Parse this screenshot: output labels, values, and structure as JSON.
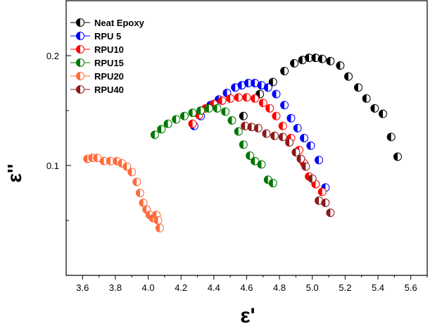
{
  "chart_data": {
    "type": "scatter",
    "xlabel": "ε'",
    "ylabel": "ε''",
    "xlim": [
      3.5,
      5.7
    ],
    "ylim": [
      0.0,
      0.25
    ],
    "x_ticks": [
      3.6,
      3.8,
      4.0,
      4.2,
      4.4,
      4.6,
      4.8,
      5.0,
      5.2,
      5.4,
      5.6
    ],
    "x_tick_labels": [
      "3.6",
      "3.8",
      "4.0",
      "4.2",
      "4.4",
      "4.6",
      "4.8",
      "5.0",
      "5.2",
      "5.4",
      "5.6"
    ],
    "y_ticks": [
      0.1,
      0.2
    ],
    "y_tick_labels": [
      "0.1",
      "0.2"
    ],
    "y_minor_ticks": [
      0.05,
      0.15
    ],
    "grid": false,
    "legend_position": "top-left",
    "series": [
      {
        "name": "Neat Epoxy",
        "color": "#000000",
        "x": [
          4.58,
          4.68,
          4.76,
          4.83,
          4.89,
          4.94,
          4.98,
          5.02,
          5.06,
          5.11,
          5.17,
          5.22,
          5.28,
          5.33,
          5.38,
          5.43,
          5.48,
          5.52
        ],
        "y": [
          0.145,
          0.165,
          0.176,
          0.186,
          0.193,
          0.196,
          0.198,
          0.198,
          0.197,
          0.195,
          0.191,
          0.181,
          0.171,
          0.161,
          0.152,
          0.147,
          0.126,
          0.108
        ]
      },
      {
        "name": "RPU 5",
        "color": "#0000ff",
        "x": [
          4.28,
          4.32,
          4.38,
          4.43,
          4.48,
          4.53,
          4.57,
          4.61,
          4.65,
          4.69,
          4.73,
          4.78,
          4.83,
          4.87,
          4.91,
          4.95,
          4.99,
          5.04,
          5.08
        ],
        "y": [
          0.136,
          0.145,
          0.155,
          0.16,
          0.166,
          0.171,
          0.173,
          0.175,
          0.175,
          0.173,
          0.171,
          0.165,
          0.155,
          0.143,
          0.134,
          0.125,
          0.118,
          0.105,
          0.08
        ]
      },
      {
        "name": "RPU10",
        "color": "#ff0000",
        "x": [
          4.27,
          4.31,
          4.35,
          4.4,
          4.45,
          4.5,
          4.55,
          4.6,
          4.65,
          4.7,
          4.74,
          4.78,
          4.82,
          4.87,
          4.92,
          4.95,
          4.98,
          5.02,
          5.06
        ],
        "y": [
          0.138,
          0.146,
          0.152,
          0.156,
          0.159,
          0.161,
          0.162,
          0.162,
          0.161,
          0.157,
          0.152,
          0.145,
          0.136,
          0.125,
          0.114,
          0.102,
          0.09,
          0.083,
          0.076
        ]
      },
      {
        "name": "RPU15",
        "color": "#007700",
        "x": [
          4.04,
          4.08,
          4.12,
          4.17,
          4.22,
          4.27,
          4.32,
          4.37,
          4.42,
          4.47,
          4.51,
          4.55,
          4.58,
          4.62,
          4.65,
          4.69,
          4.73,
          4.76
        ],
        "y": [
          0.128,
          0.133,
          0.138,
          0.142,
          0.145,
          0.148,
          0.15,
          0.152,
          0.152,
          0.149,
          0.141,
          0.131,
          0.119,
          0.109,
          0.104,
          0.101,
          0.087,
          0.084
        ]
      },
      {
        "name": "RPU20",
        "color": "#ff6b3d",
        "x": [
          3.63,
          3.66,
          3.69,
          3.73,
          3.77,
          3.81,
          3.84,
          3.87,
          3.9,
          3.93,
          3.95,
          3.97,
          3.99,
          4.01,
          4.03,
          4.05,
          4.06,
          4.07
        ],
        "y": [
          0.106,
          0.107,
          0.107,
          0.104,
          0.104,
          0.104,
          0.102,
          0.099,
          0.094,
          0.085,
          0.075,
          0.066,
          0.06,
          0.055,
          0.052,
          0.055,
          0.05,
          0.043
        ]
      },
      {
        "name": "RPU40",
        "color": "#8b1a1a",
        "x": [
          4.59,
          4.63,
          4.67,
          4.72,
          4.77,
          4.82,
          4.86,
          4.9,
          4.93,
          4.96,
          5.0,
          5.04,
          5.08,
          5.11
        ],
        "y": [
          0.136,
          0.135,
          0.134,
          0.129,
          0.127,
          0.126,
          0.121,
          0.112,
          0.106,
          0.099,
          0.088,
          0.068,
          0.066,
          0.057
        ]
      }
    ]
  }
}
